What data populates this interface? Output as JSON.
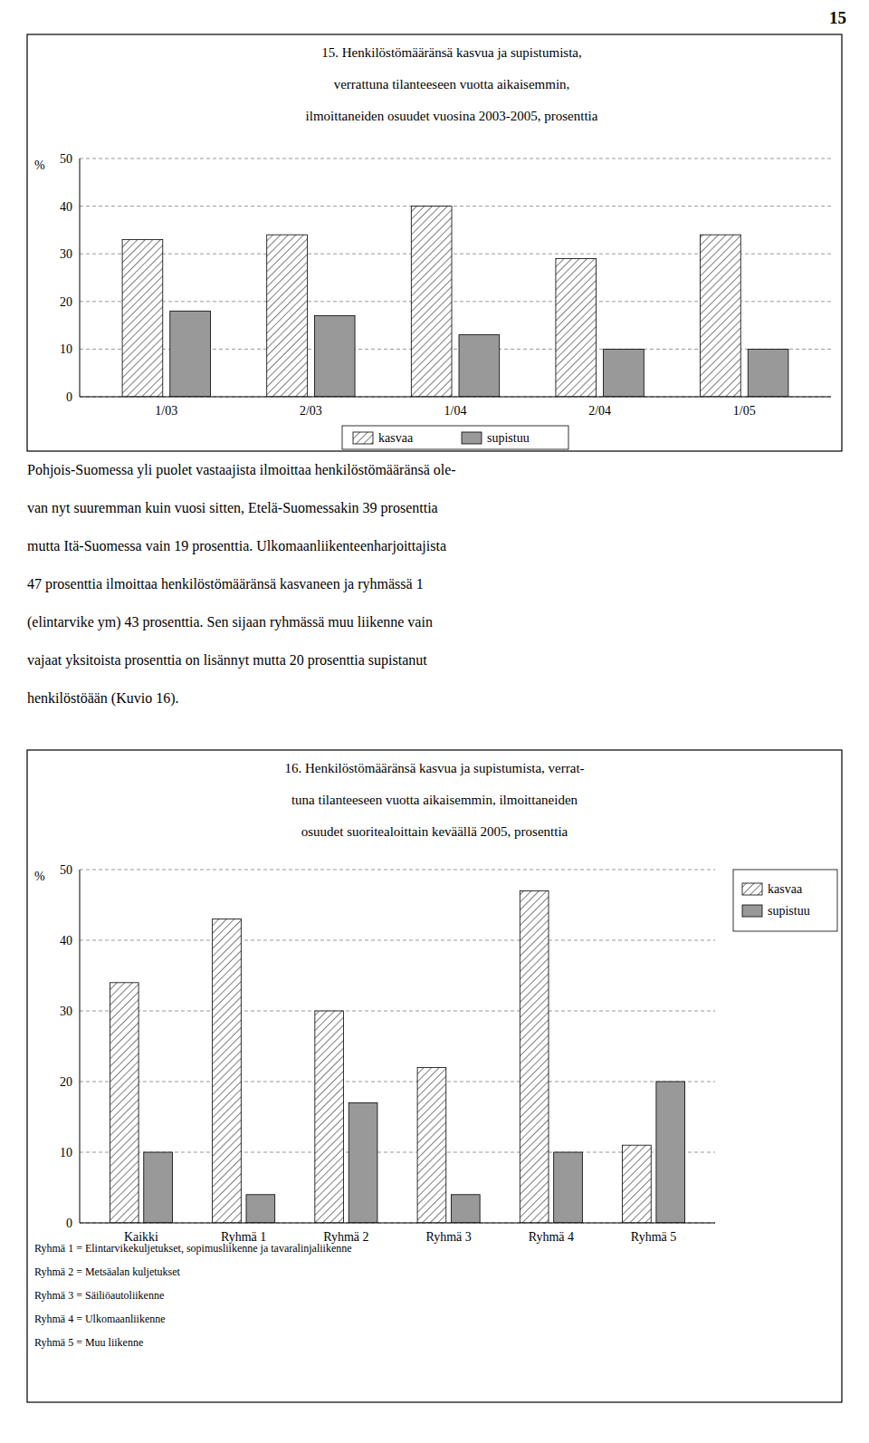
{
  "page_number": "15",
  "text_block": [
    "Pohjois-Suomessa yli puolet vastaajista ilmoittaa henkilöstömääränsä ole-",
    "van nyt suuremman kuin vuosi sitten, Etelä-Suomessakin 39 prosenttia",
    "mutta Itä-Suomessa vain 19 prosenttia. Ulkomaanliikenteenharjoittajista",
    "47 prosenttia ilmoittaa henkilöstömääränsä kasvaneen ja ryhmässä 1",
    "(elintarvike ym) 43 prosenttia. Sen sijaan ryhmässä muu liikenne vain",
    "vajaat yksitoista prosenttia on lisännyt mutta 20 prosenttia supistanut",
    "henkilöstöään (Kuvio 16)."
  ],
  "chart_data": [
    {
      "type": "bar",
      "title": [
        "15. Henkilöstömääränsä kasvua ja supistumista,",
        "verrattuna tilanteeseen vuotta aikaisemmin,",
        "ilmoittaneiden osuudet vuosina 2003-2005, prosenttia"
      ],
      "y_label": "%",
      "categories": [
        "1/03",
        "2/03",
        "1/04",
        "2/04",
        "1/05"
      ],
      "series": [
        {
          "name": "kasvaa",
          "color": "#ffffff",
          "values": [
            33,
            34,
            40,
            29,
            34
          ]
        },
        {
          "name": "supistuu",
          "color": "#999999",
          "values": [
            18,
            17,
            13,
            10,
            10
          ]
        }
      ],
      "ylim": [
        0,
        50
      ],
      "yticks": [
        0,
        10,
        20,
        30,
        40,
        50
      ],
      "grid": true,
      "legend": "bottom"
    },
    {
      "type": "bar",
      "title": [
        "16. Henkilöstömääränsä kasvua ja supistumista, verrat-",
        "tuna tilanteeseen vuotta aikaisemmin, ilmoittaneiden",
        "osuudet suoritealoittain keväällä 2005, prosenttia"
      ],
      "y_label": "%",
      "categories": [
        "Kaikki",
        "Ryhmä 1",
        "Ryhmä 2",
        "Ryhmä 3",
        "Ryhmä 4",
        "Ryhmä 5"
      ],
      "series": [
        {
          "name": "kasvaa",
          "color": "#ffffff",
          "values": [
            34,
            43,
            30,
            22,
            47,
            11
          ]
        },
        {
          "name": "supistuu",
          "color": "#999999",
          "values": [
            10,
            4,
            17,
            4,
            10,
            20
          ]
        }
      ],
      "ylim": [
        0,
        50
      ],
      "yticks": [
        0,
        10,
        20,
        30,
        40,
        50
      ],
      "grid": true,
      "legend": "right",
      "annotations": [
        "Ryhmä 1 = Elintarvikekuljetukset, sopimusliikenne ja tavaralinjaliikenne",
        "Ryhmä 2 = Metsäalan kuljetukset",
        "Ryhmä 3 = Säiliöautoliikenne",
        "Ryhmä 4 = Ulkomaanliikenne",
        "Ryhmä 5 = Muu liikenne"
      ]
    }
  ]
}
